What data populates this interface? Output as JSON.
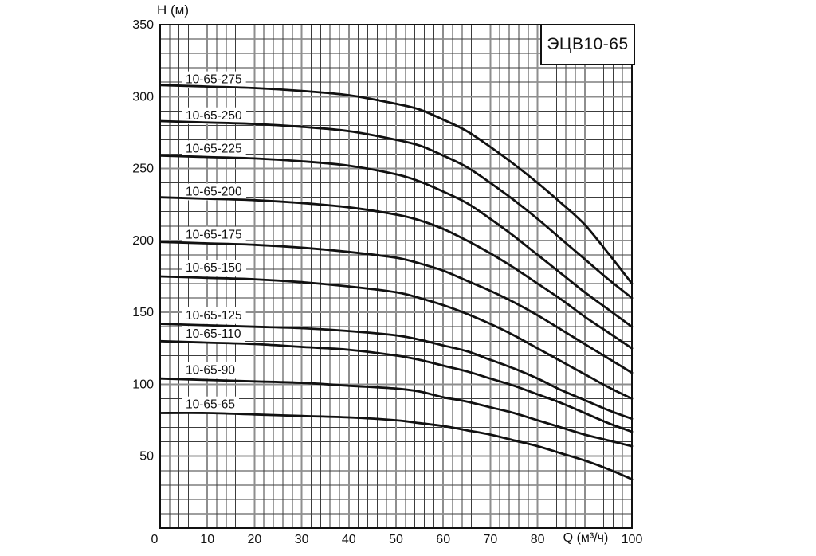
{
  "title_box": {
    "text": "ЭЦВ10-65"
  },
  "chart_data": {
    "type": "line",
    "title": "ЭЦВ10-65",
    "xlabel": "Q (м³/ч)",
    "ylabel": "H (м)",
    "xlim": [
      0,
      100
    ],
    "ylim": [
      0,
      350
    ],
    "grid": "on",
    "legend_position": "inline-labels",
    "x_ticks": [
      0,
      10,
      20,
      30,
      40,
      50,
      60,
      70,
      80,
      100
    ],
    "y_ticks": [
      350,
      300,
      250,
      200,
      150,
      100,
      50
    ],
    "x_minor_step": 2,
    "x_major_step": 10,
    "y_minor_step": 10,
    "y_major_step": 50,
    "x": [
      0,
      10,
      20,
      30,
      40,
      50,
      55,
      60,
      65,
      70,
      75,
      80,
      85,
      90,
      95,
      100
    ],
    "series": [
      {
        "name": "10-65-275",
        "label_h": 312,
        "values": [
          308,
          307,
          306,
          304,
          301,
          295,
          291,
          284,
          276,
          265,
          253,
          240,
          226,
          211,
          191,
          170
        ]
      },
      {
        "name": "10-65-250",
        "label_h": 287,
        "values": [
          283,
          282,
          281,
          279,
          276,
          270,
          266,
          259,
          251,
          240,
          228,
          215,
          201,
          187,
          173,
          160
        ]
      },
      {
        "name": "10-65-225",
        "label_h": 264,
        "values": [
          259,
          258,
          257,
          255,
          252,
          246,
          241,
          234,
          226,
          215,
          203,
          190,
          177,
          164,
          152,
          140
        ]
      },
      {
        "name": "10-65-200",
        "label_h": 234,
        "values": [
          230,
          229,
          228,
          226,
          223,
          218,
          214,
          208,
          200,
          191,
          181,
          170,
          159,
          147,
          136,
          125
        ]
      },
      {
        "name": "10-65-175",
        "label_h": 204,
        "values": [
          199,
          198,
          197,
          195,
          192,
          188,
          184,
          179,
          172,
          165,
          157,
          148,
          138,
          128,
          118,
          108
        ]
      },
      {
        "name": "10-65-150",
        "label_h": 181,
        "values": [
          175,
          174,
          173,
          171,
          168,
          164,
          160,
          155,
          149,
          142,
          134,
          125,
          116,
          107,
          98,
          90
        ]
      },
      {
        "name": "10-65-125",
        "label_h": 148,
        "values": [
          142,
          141,
          140,
          139,
          137,
          134,
          131,
          127,
          123,
          117,
          111,
          104,
          96,
          89,
          82,
          76
        ]
      },
      {
        "name": "10-65-110",
        "label_h": 135,
        "values": [
          130,
          129,
          128,
          126,
          124,
          120,
          117,
          113,
          109,
          104,
          99,
          93,
          87,
          80,
          73,
          67
        ]
      },
      {
        "name": "10-65-90",
        "label_h": 110,
        "values": [
          104,
          103,
          102,
          101,
          99,
          97,
          95,
          91,
          88,
          84,
          80,
          75,
          70,
          65,
          61,
          57
        ]
      },
      {
        "name": "10-65-65",
        "label_h": 86,
        "values": [
          80,
          80,
          79,
          78,
          77,
          75,
          73,
          71,
          68,
          65,
          61,
          57,
          52,
          47,
          41,
          34
        ]
      }
    ],
    "label_q": 5.4,
    "colors": {
      "background": "#ffffff",
      "curve": "#111111",
      "grid_minor": "#3c3c3c",
      "grid_major": "#8e8e8e",
      "frame": "#111111",
      "text": "#111111"
    }
  }
}
